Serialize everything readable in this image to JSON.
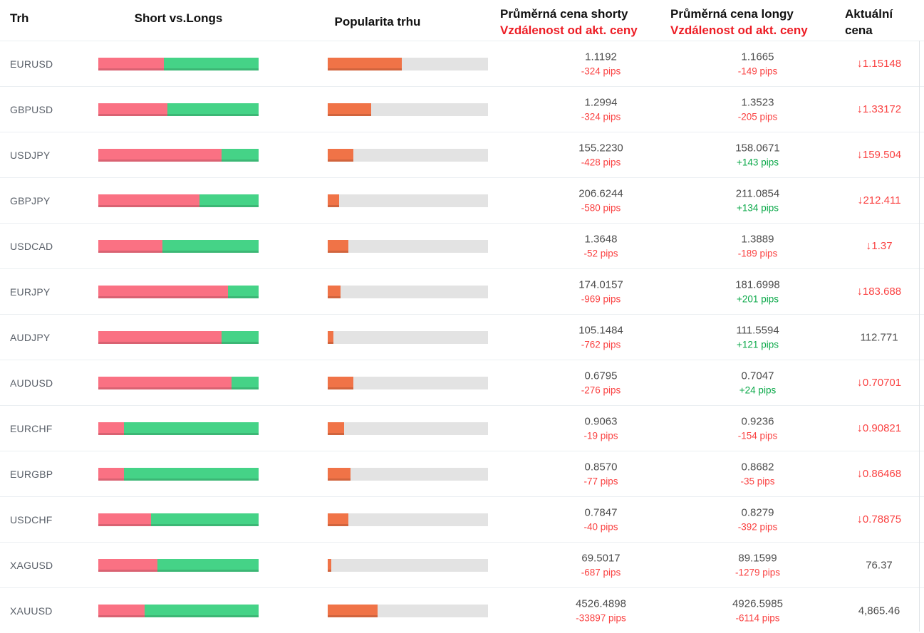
{
  "header": {
    "market": "Trh",
    "short_vs_longs": "Short vs.Longs",
    "popularity": "Popularita trhu",
    "avg_short_line1": "Průměrná cena shorty",
    "avg_short_line2": "Vzdálenost od akt. ceny",
    "avg_long_line1": "Průměrná cena longy",
    "avg_long_line2": "Vzdálenost od akt. ceny",
    "current_line1": "Aktuální",
    "current_line2": "cena"
  },
  "colors": {
    "short_bar": "#fa7183",
    "long_bar": "#45d387",
    "popularity_bar": "#f07347",
    "track": "#e3e3e3",
    "negative": "#fa4242",
    "positive": "#0ca94a",
    "header_red": "#ed1c24"
  },
  "icons": {
    "down_arrow": "↓"
  },
  "chart_data": {
    "type": "table",
    "columns": [
      "Trh",
      "Short vs.Longs (% short)",
      "Popularita trhu (%)",
      "Průměrná cena shorty / Vzdálenost od akt. ceny",
      "Průměrná cena longy / Vzdálenost od akt. ceny",
      "Aktuální cena"
    ],
    "rows": [
      {
        "symbol": "EURUSD",
        "short_pct": 41,
        "long_pct": 59,
        "popularity_pct": 46,
        "short_price": "1.1192",
        "short_dist": "-324 pips",
        "short_dist_sign": "neg",
        "long_price": "1.1665",
        "long_dist": "-149 pips",
        "long_dist_sign": "neg",
        "current_price": "1.15148",
        "direction": "down"
      },
      {
        "symbol": "GBPUSD",
        "short_pct": 43,
        "long_pct": 57,
        "popularity_pct": 27,
        "short_price": "1.2994",
        "short_dist": "-324 pips",
        "short_dist_sign": "neg",
        "long_price": "1.3523",
        "long_dist": "-205 pips",
        "long_dist_sign": "neg",
        "current_price": "1.33172",
        "direction": "down"
      },
      {
        "symbol": "USDJPY",
        "short_pct": 77,
        "long_pct": 23,
        "popularity_pct": 16,
        "short_price": "155.2230",
        "short_dist": "-428 pips",
        "short_dist_sign": "neg",
        "long_price": "158.0671",
        "long_dist": "+143 pips",
        "long_dist_sign": "pos",
        "current_price": "159.504",
        "direction": "down"
      },
      {
        "symbol": "GBPJPY",
        "short_pct": 63,
        "long_pct": 37,
        "popularity_pct": 7,
        "short_price": "206.6244",
        "short_dist": "-580 pips",
        "short_dist_sign": "neg",
        "long_price": "211.0854",
        "long_dist": "+134 pips",
        "long_dist_sign": "pos",
        "current_price": "212.411",
        "direction": "down"
      },
      {
        "symbol": "USDCAD",
        "short_pct": 40,
        "long_pct": 60,
        "popularity_pct": 13,
        "short_price": "1.3648",
        "short_dist": "-52 pips",
        "short_dist_sign": "neg",
        "long_price": "1.3889",
        "long_dist": "-189 pips",
        "long_dist_sign": "neg",
        "current_price": "1.37",
        "direction": "down"
      },
      {
        "symbol": "EURJPY",
        "short_pct": 81,
        "long_pct": 19,
        "popularity_pct": 8,
        "short_price": "174.0157",
        "short_dist": "-969 pips",
        "short_dist_sign": "neg",
        "long_price": "181.6998",
        "long_dist": "+201 pips",
        "long_dist_sign": "pos",
        "current_price": "183.688",
        "direction": "down"
      },
      {
        "symbol": "AUDJPY",
        "short_pct": 77,
        "long_pct": 23,
        "popularity_pct": 3.5,
        "short_price": "105.1484",
        "short_dist": "-762 pips",
        "short_dist_sign": "neg",
        "long_price": "111.5594",
        "long_dist": "+121 pips",
        "long_dist_sign": "pos",
        "current_price": "112.771",
        "direction": "none"
      },
      {
        "symbol": "AUDUSD",
        "short_pct": 83,
        "long_pct": 17,
        "popularity_pct": 16,
        "short_price": "0.6795",
        "short_dist": "-276 pips",
        "short_dist_sign": "neg",
        "long_price": "0.7047",
        "long_dist": "+24 pips",
        "long_dist_sign": "pos",
        "current_price": "0.70701",
        "direction": "down"
      },
      {
        "symbol": "EURCHF",
        "short_pct": 16,
        "long_pct": 84,
        "popularity_pct": 10,
        "short_price": "0.9063",
        "short_dist": "-19 pips",
        "short_dist_sign": "neg",
        "long_price": "0.9236",
        "long_dist": "-154 pips",
        "long_dist_sign": "neg",
        "current_price": "0.90821",
        "direction": "down"
      },
      {
        "symbol": "EURGBP",
        "short_pct": 16,
        "long_pct": 84,
        "popularity_pct": 14,
        "short_price": "0.8570",
        "short_dist": "-77 pips",
        "short_dist_sign": "neg",
        "long_price": "0.8682",
        "long_dist": "-35 pips",
        "long_dist_sign": "neg",
        "current_price": "0.86468",
        "direction": "down"
      },
      {
        "symbol": "USDCHF",
        "short_pct": 33,
        "long_pct": 67,
        "popularity_pct": 13,
        "short_price": "0.7847",
        "short_dist": "-40 pips",
        "short_dist_sign": "neg",
        "long_price": "0.8279",
        "long_dist": "-392 pips",
        "long_dist_sign": "neg",
        "current_price": "0.78875",
        "direction": "down"
      },
      {
        "symbol": "XAGUSD",
        "short_pct": 37,
        "long_pct": 63,
        "popularity_pct": 2,
        "short_price": "69.5017",
        "short_dist": "-687 pips",
        "short_dist_sign": "neg",
        "long_price": "89.1599",
        "long_dist": "-1279 pips",
        "long_dist_sign": "neg",
        "current_price": "76.37",
        "direction": "none"
      },
      {
        "symbol": "XAUUSD",
        "short_pct": 29,
        "long_pct": 71,
        "popularity_pct": 31,
        "short_price": "4526.4898",
        "short_dist": "-33897 pips",
        "short_dist_sign": "neg",
        "long_price": "4926.5985",
        "long_dist": "-6114 pips",
        "long_dist_sign": "neg",
        "current_price": "4,865.46",
        "direction": "none"
      }
    ]
  }
}
